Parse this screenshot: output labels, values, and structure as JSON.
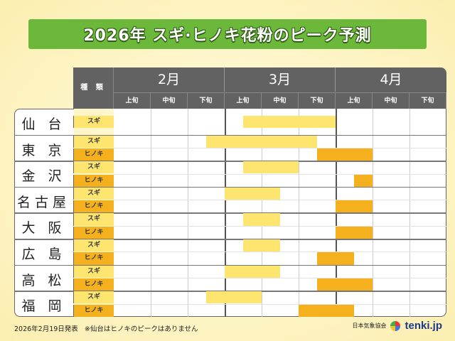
{
  "title": "2026年 スギ·ヒノキ花粉のピーク予測",
  "header": {
    "kind_label": "種 類",
    "months": [
      "2月",
      "3月",
      "4月"
    ],
    "decades": [
      "上旬",
      "中旬",
      "下旬"
    ]
  },
  "colors": {
    "sugi": "#fde56f",
    "hinoki": "#f5b01e",
    "banner": "#6cb83a",
    "header": "#626262"
  },
  "chart_data": {
    "type": "table",
    "title": "2026年 スギ·ヒノキ花粉のピーク予測",
    "periods": [
      "2月上旬",
      "2月中旬",
      "2月下旬",
      "3月上旬",
      "3月中旬",
      "3月下旬",
      "4月上旬",
      "4月中旬",
      "4月下旬"
    ],
    "note": "peak ranges given as [period, half] where half 0 = start of period, 0.5 = middle",
    "cities": [
      {
        "name": "仙 台",
        "rows": [
          {
            "type": "スギ",
            "start": [
              "3月上旬",
              0.5
            ],
            "end": [
              "3月下旬",
              1
            ]
          }
        ]
      },
      {
        "name": "東 京",
        "rows": [
          {
            "type": "スギ",
            "start": [
              "2月下旬",
              0.5
            ],
            "end": [
              "3月下旬",
              0.5
            ]
          },
          {
            "type": "ヒノキ",
            "start": [
              "3月下旬",
              0.5
            ],
            "end": [
              "4月上旬",
              1
            ]
          }
        ]
      },
      {
        "name": "金 沢",
        "rows": [
          {
            "type": "スギ",
            "start": [
              "3月上旬",
              0.5
            ],
            "end": [
              "3月中旬",
              1
            ]
          },
          {
            "type": "ヒノキ",
            "start": [
              "4月上旬",
              0.5
            ],
            "end": [
              "4月上旬",
              1
            ]
          }
        ]
      },
      {
        "name": "名古屋",
        "rows": [
          {
            "type": "スギ",
            "start": [
              "3月上旬",
              0
            ],
            "end": [
              "3月中旬",
              0.5
            ]
          },
          {
            "type": "ヒノキ",
            "start": [
              "4月上旬",
              0
            ],
            "end": [
              "4月上旬",
              1
            ]
          }
        ]
      },
      {
        "name": "大 阪",
        "rows": [
          {
            "type": "スギ",
            "start": [
              "3月上旬",
              0.5
            ],
            "end": [
              "3月中旬",
              0.5
            ]
          },
          {
            "type": "ヒノキ",
            "start": [
              "4月上旬",
              0
            ],
            "end": [
              "4月上旬",
              1
            ]
          }
        ]
      },
      {
        "name": "広 島",
        "rows": [
          {
            "type": "スギ",
            "start": [
              "3月上旬",
              0.5
            ],
            "end": [
              "3月中旬",
              0.5
            ]
          },
          {
            "type": "ヒノキ",
            "start": [
              "3月下旬",
              0.5
            ],
            "end": [
              "4月上旬",
              0.5
            ]
          }
        ]
      },
      {
        "name": "高 松",
        "rows": [
          {
            "type": "スギ",
            "start": [
              "3月上旬",
              0
            ],
            "end": [
              "3月中旬",
              0.5
            ]
          },
          {
            "type": "ヒノキ",
            "start": [
              "3月下旬",
              0.5
            ],
            "end": [
              "4月上旬",
              1
            ]
          }
        ]
      },
      {
        "name": "福 岡",
        "rows": [
          {
            "type": "スギ",
            "start": [
              "2月下旬",
              0.5
            ],
            "end": [
              "3月上旬",
              1
            ]
          },
          {
            "type": "ヒノキ",
            "start": [
              "3月下旬",
              0
            ],
            "end": [
              "4月上旬",
              0.5
            ]
          }
        ]
      }
    ]
  },
  "footer": {
    "issued": "2026年2月19日発表",
    "remark": "※仙台はヒノキのピークはありません",
    "org": "日本気象協会",
    "logo": "tenki.jp"
  }
}
